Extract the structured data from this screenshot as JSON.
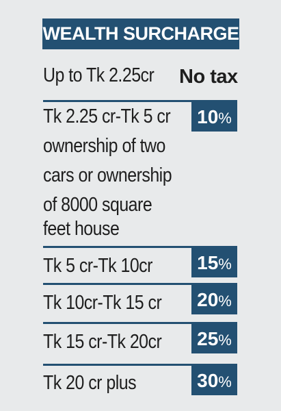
{
  "title": "WEALTH SURCHARGE",
  "rows": [
    {
      "label_lines": [
        "Up to Tk 2.25cr"
      ],
      "rate": "No tax"
    },
    {
      "label_lines": [
        "Tk 2.25 cr-Tk 5 cr",
        "ownership of two",
        "cars or ownership",
        "of 8000 square",
        "feet house"
      ],
      "rate_num": "10",
      "rate_unit": "%"
    },
    {
      "label_lines": [
        "Tk 5 cr-Tk 10cr"
      ],
      "rate_num": "15",
      "rate_unit": "%"
    },
    {
      "label_lines": [
        "Tk 10cr-Tk 15 cr"
      ],
      "rate_num": "20",
      "rate_unit": "%"
    },
    {
      "label_lines": [
        "Tk 15 cr-Tk 20cr"
      ],
      "rate_num": "25",
      "rate_unit": "%"
    },
    {
      "label_lines": [
        "Tk 20 cr plus"
      ],
      "rate_num": "30",
      "rate_unit": "%"
    }
  ],
  "colors": {
    "accent": "#235072",
    "background": "#e8eaeb",
    "text": "#1e1e1e"
  }
}
